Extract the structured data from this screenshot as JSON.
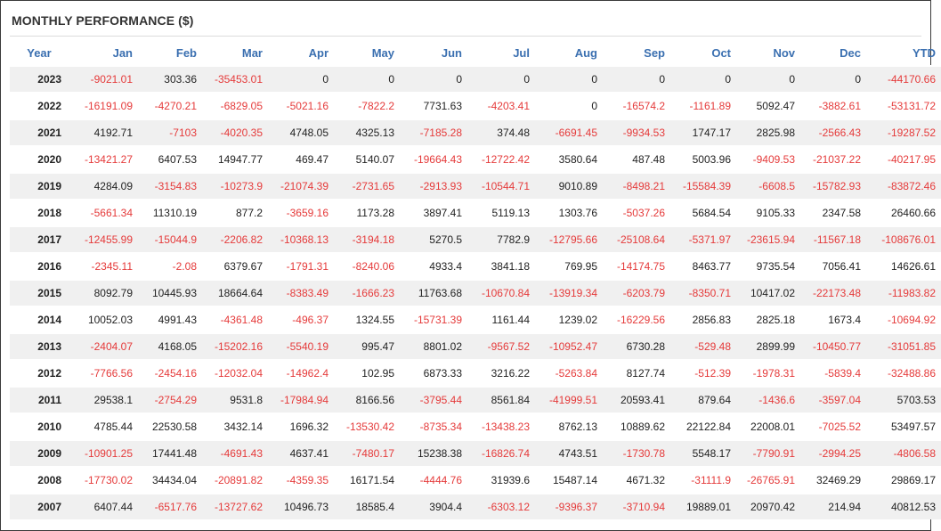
{
  "title": "MONTHLY PERFORMANCE ($)",
  "colors": {
    "header": "#3a6fb0",
    "negative": "#e53a3a",
    "positive": "#222222",
    "stripe": "#f0f0f0"
  },
  "chart_data": {
    "type": "table",
    "title": "MONTHLY PERFORMANCE ($)",
    "columns": [
      "Year",
      "Jan",
      "Feb",
      "Mar",
      "Apr",
      "May",
      "Jun",
      "Jul",
      "Aug",
      "Sep",
      "Oct",
      "Nov",
      "Dec",
      "YTD"
    ],
    "rows": [
      [
        "2023",
        "-9021.01",
        "303.36",
        "-35453.01",
        "0",
        "0",
        "0",
        "0",
        "0",
        "0",
        "0",
        "0",
        "0",
        "-44170.66"
      ],
      [
        "2022",
        "-16191.09",
        "-4270.21",
        "-6829.05",
        "-5021.16",
        "-7822.2",
        "7731.63",
        "-4203.41",
        "0",
        "-16574.2",
        "-1161.89",
        "5092.47",
        "-3882.61",
        "-53131.72"
      ],
      [
        "2021",
        "4192.71",
        "-7103",
        "-4020.35",
        "4748.05",
        "4325.13",
        "-7185.28",
        "374.48",
        "-6691.45",
        "-9934.53",
        "1747.17",
        "2825.98",
        "-2566.43",
        "-19287.52"
      ],
      [
        "2020",
        "-13421.27",
        "6407.53",
        "14947.77",
        "469.47",
        "5140.07",
        "-19664.43",
        "-12722.42",
        "3580.64",
        "487.48",
        "5003.96",
        "-9409.53",
        "-21037.22",
        "-40217.95"
      ],
      [
        "2019",
        "4284.09",
        "-3154.83",
        "-10273.9",
        "-21074.39",
        "-2731.65",
        "-2913.93",
        "-10544.71",
        "9010.89",
        "-8498.21",
        "-15584.39",
        "-6608.5",
        "-15782.93",
        "-83872.46"
      ],
      [
        "2018",
        "-5661.34",
        "11310.19",
        "877.2",
        "-3659.16",
        "1173.28",
        "3897.41",
        "5119.13",
        "1303.76",
        "-5037.26",
        "5684.54",
        "9105.33",
        "2347.58",
        "26460.66"
      ],
      [
        "2017",
        "-12455.99",
        "-15044.9",
        "-2206.82",
        "-10368.13",
        "-3194.18",
        "5270.5",
        "7782.9",
        "-12795.66",
        "-25108.64",
        "-5371.97",
        "-23615.94",
        "-11567.18",
        "-108676.01"
      ],
      [
        "2016",
        "-2345.11",
        "-2.08",
        "6379.67",
        "-1791.31",
        "-8240.06",
        "4933.4",
        "3841.18",
        "769.95",
        "-14174.75",
        "8463.77",
        "9735.54",
        "7056.41",
        "14626.61"
      ],
      [
        "2015",
        "8092.79",
        "10445.93",
        "18664.64",
        "-8383.49",
        "-1666.23",
        "11763.68",
        "-10670.84",
        "-13919.34",
        "-6203.79",
        "-8350.71",
        "10417.02",
        "-22173.48",
        "-11983.82"
      ],
      [
        "2014",
        "10052.03",
        "4991.43",
        "-4361.48",
        "-496.37",
        "1324.55",
        "-15731.39",
        "1161.44",
        "1239.02",
        "-16229.56",
        "2856.83",
        "2825.18",
        "1673.4",
        "-10694.92"
      ],
      [
        "2013",
        "-2404.07",
        "4168.05",
        "-15202.16",
        "-5540.19",
        "995.47",
        "8801.02",
        "-9567.52",
        "-10952.47",
        "6730.28",
        "-529.48",
        "2899.99",
        "-10450.77",
        "-31051.85"
      ],
      [
        "2012",
        "-7766.56",
        "-2454.16",
        "-12032.04",
        "-14962.4",
        "102.95",
        "6873.33",
        "3216.22",
        "-5263.84",
        "8127.74",
        "-512.39",
        "-1978.31",
        "-5839.4",
        "-32488.86"
      ],
      [
        "2011",
        "29538.1",
        "-2754.29",
        "9531.8",
        "-17984.94",
        "8166.56",
        "-3795.44",
        "8561.84",
        "-41999.51",
        "20593.41",
        "879.64",
        "-1436.6",
        "-3597.04",
        "5703.53"
      ],
      [
        "2010",
        "4785.44",
        "22530.58",
        "3432.14",
        "1696.32",
        "-13530.42",
        "-8735.34",
        "-13438.23",
        "8762.13",
        "10889.62",
        "22122.84",
        "22008.01",
        "-7025.52",
        "53497.57"
      ],
      [
        "2009",
        "-10901.25",
        "17441.48",
        "-4691.43",
        "4637.41",
        "-7480.17",
        "15238.38",
        "-16826.74",
        "4743.51",
        "-1730.78",
        "5548.17",
        "-7790.91",
        "-2994.25",
        "-4806.58"
      ],
      [
        "2008",
        "-17730.02",
        "34434.04",
        "-20891.82",
        "-4359.35",
        "16171.54",
        "-4444.76",
        "31939.6",
        "15487.14",
        "4671.32",
        "-31111.9",
        "-26765.91",
        "32469.29",
        "29869.17"
      ],
      [
        "2007",
        "6407.44",
        "-6517.76",
        "-13727.62",
        "10496.73",
        "18585.4",
        "3904.4",
        "-6303.12",
        "-9396.37",
        "-3710.94",
        "19889.01",
        "20970.42",
        "214.94",
        "40812.53"
      ]
    ]
  }
}
